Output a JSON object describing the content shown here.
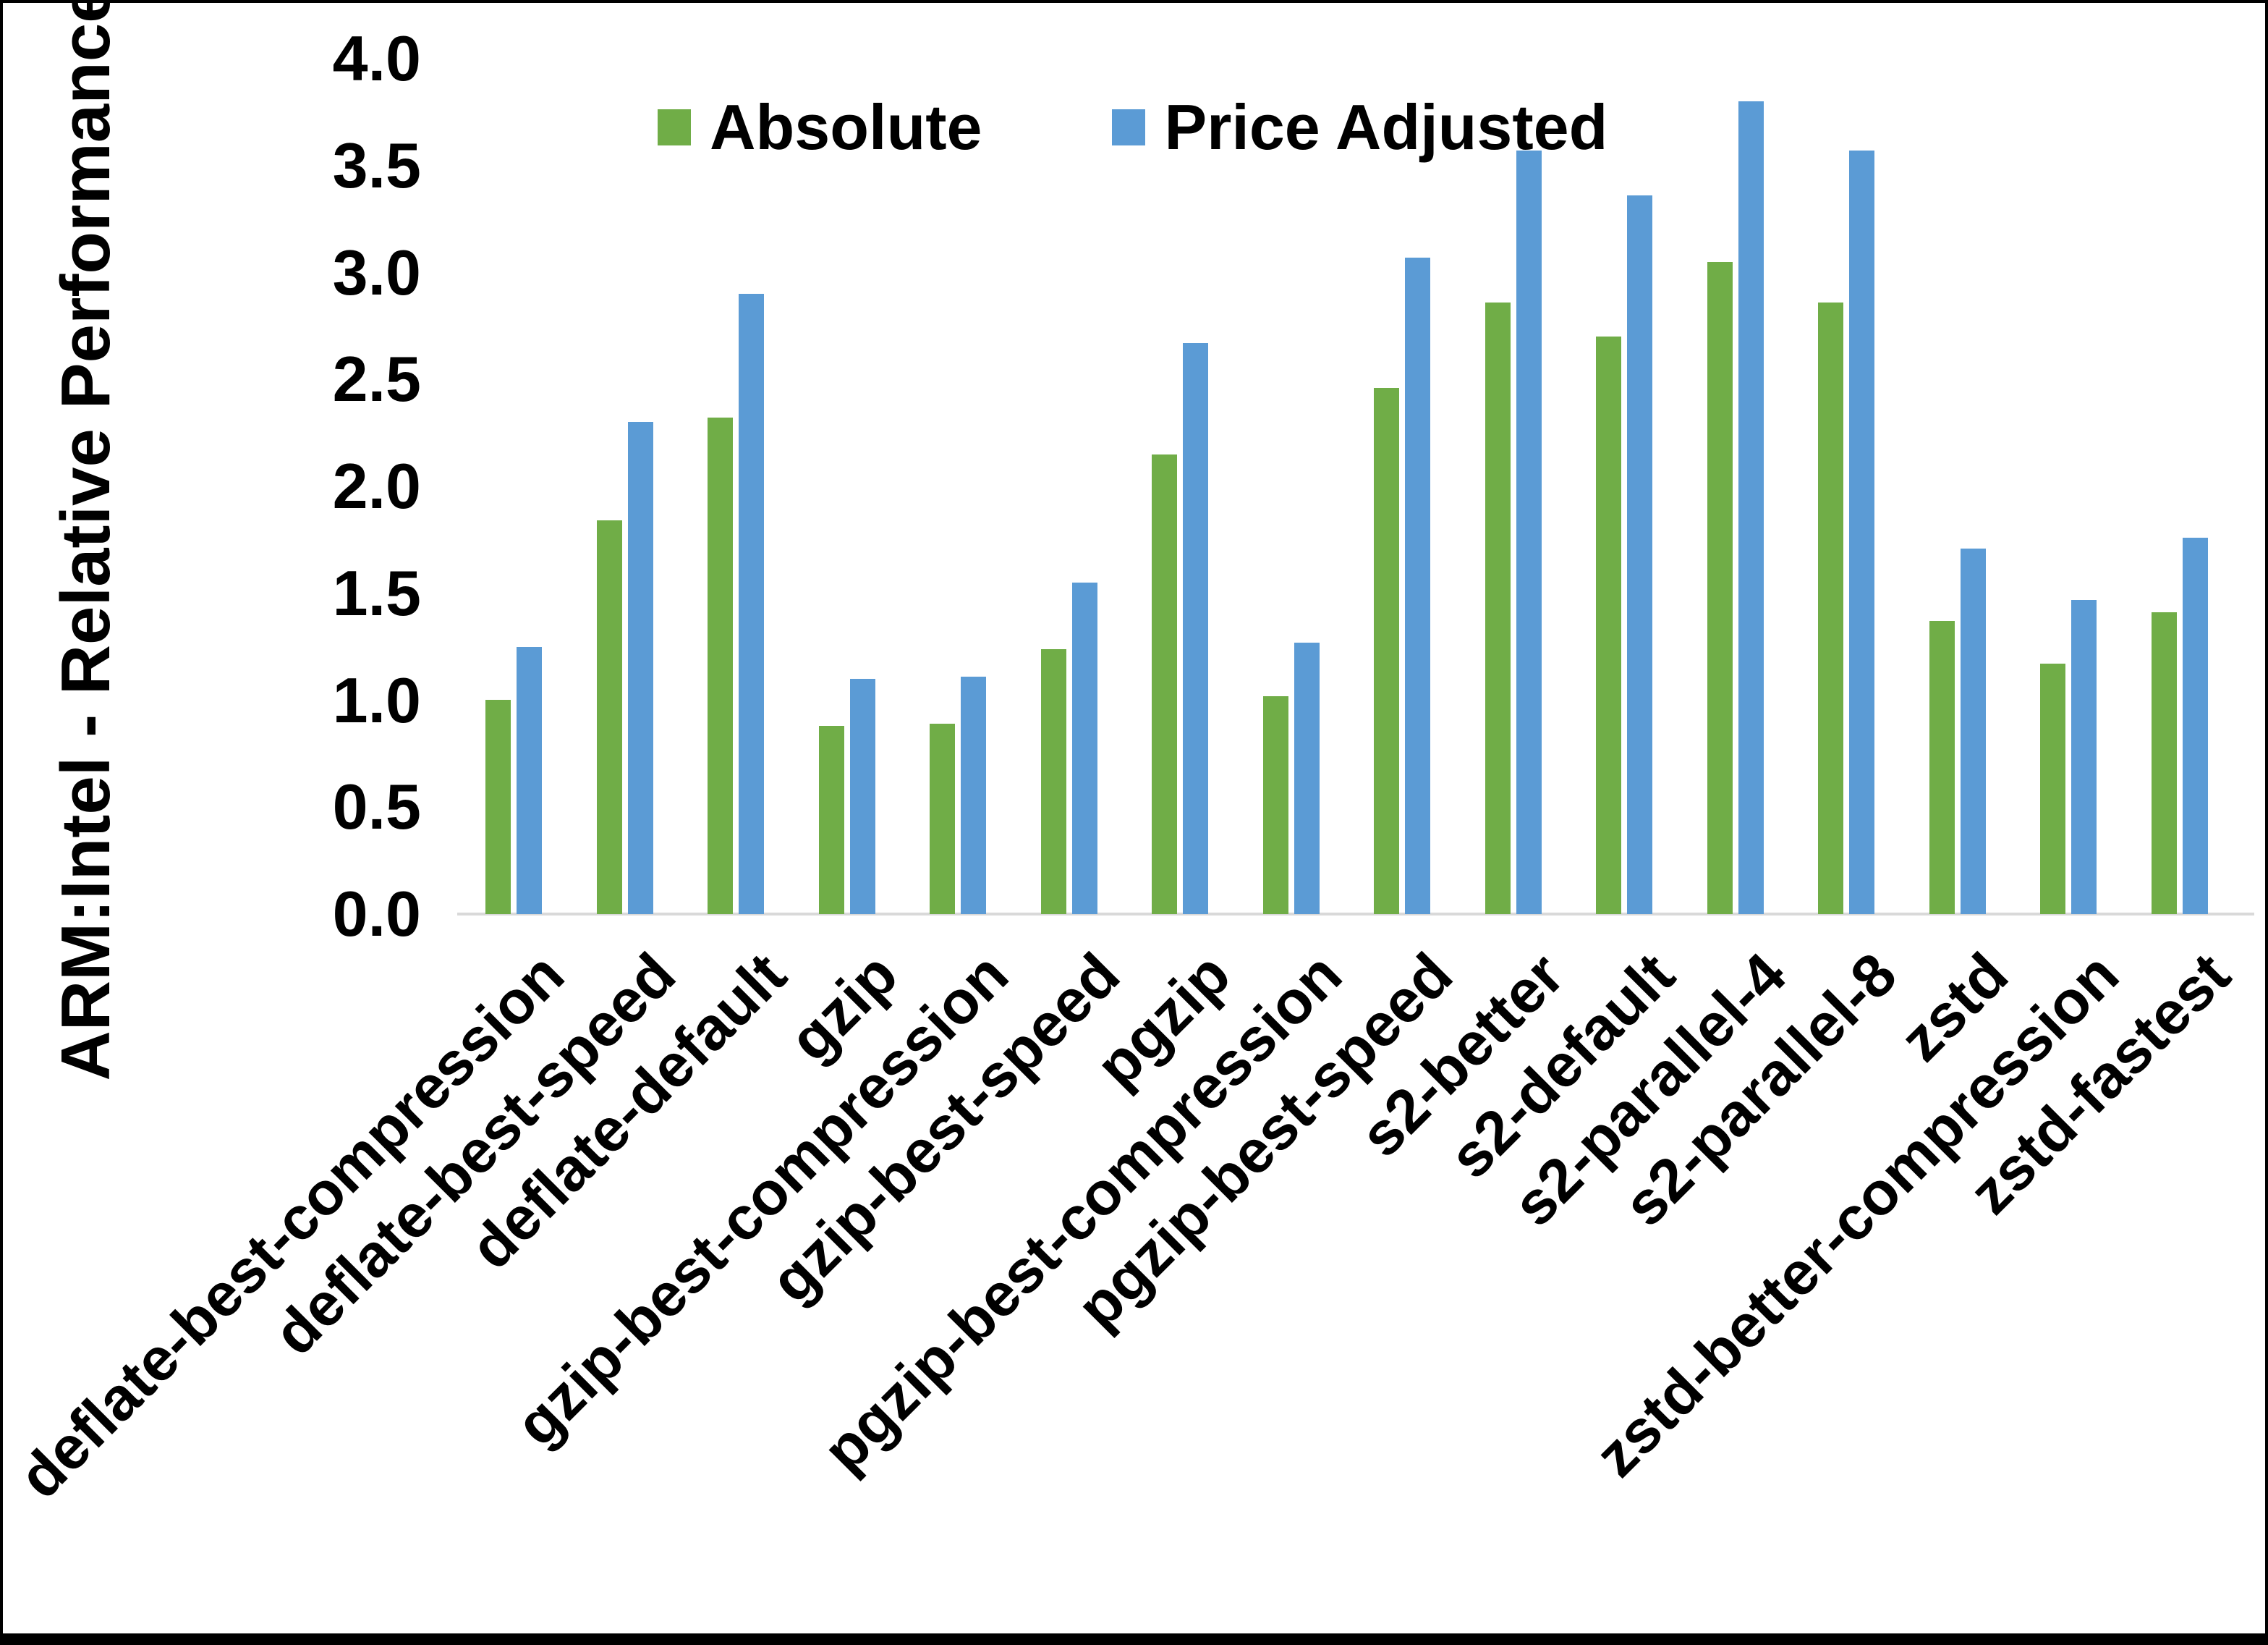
{
  "chart_data": {
    "type": "bar",
    "title": "",
    "xlabel": "",
    "ylabel": "ARM:Intel - Relative Performance",
    "ylim": [
      0.0,
      4.0
    ],
    "y_ticks": [
      "0.0",
      "0.5",
      "1.0",
      "1.5",
      "2.0",
      "2.5",
      "3.0",
      "3.5",
      "4.0"
    ],
    "grid": false,
    "legend_position": "top-center",
    "categories": [
      "deflate-best-compression",
      "deflate-best-speed",
      "deflate-default",
      "gzip",
      "gzip-best-compression",
      "gzip-best-speed",
      "pgzip",
      "pgzip-best-compression",
      "pgzip-best-speed",
      "s2-better",
      "s2-default",
      "s2-parallel-4",
      "s2-parallel-8",
      "zstd",
      "zstd-better-compression",
      "zstd-fastest"
    ],
    "series": [
      {
        "name": "Absolute",
        "color": "#70AD47",
        "values": [
          1.0,
          1.84,
          2.32,
          0.88,
          0.89,
          1.24,
          2.15,
          1.02,
          2.46,
          2.86,
          2.7,
          3.05,
          2.86,
          1.37,
          1.17,
          1.41
        ]
      },
      {
        "name": "Price Adjusted",
        "color": "#5B9BD5",
        "values": [
          1.25,
          2.3,
          2.9,
          1.1,
          1.11,
          1.55,
          2.67,
          1.27,
          3.07,
          3.57,
          3.36,
          3.8,
          3.57,
          1.71,
          1.47,
          1.76
        ]
      }
    ],
    "axis_line_color": "#D9D9D9",
    "text_color": "#000000"
  }
}
